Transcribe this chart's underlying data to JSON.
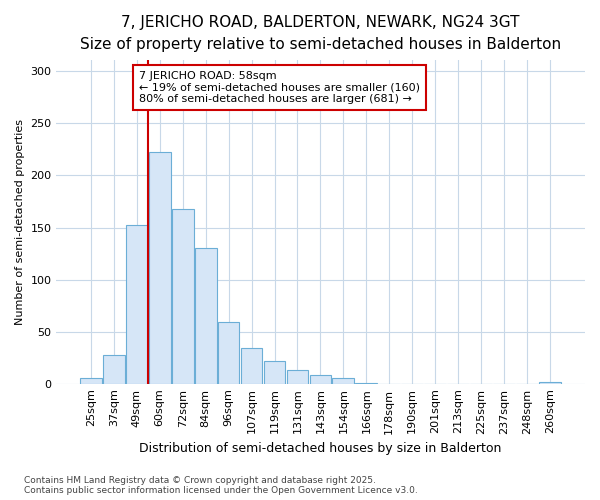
{
  "title1": "7, JERICHO ROAD, BALDERTON, NEWARK, NG24 3GT",
  "title2": "Size of property relative to semi-detached houses in Balderton",
  "xlabel": "Distribution of semi-detached houses by size in Balderton",
  "ylabel": "Number of semi-detached properties",
  "categories": [
    "25sqm",
    "37sqm",
    "49sqm",
    "60sqm",
    "72sqm",
    "84sqm",
    "96sqm",
    "107sqm",
    "119sqm",
    "131sqm",
    "143sqm",
    "154sqm",
    "166sqm",
    "178sqm",
    "190sqm",
    "201sqm",
    "213sqm",
    "225sqm",
    "237sqm",
    "248sqm",
    "260sqm"
  ],
  "bar_heights": [
    6,
    28,
    152,
    222,
    168,
    130,
    60,
    35,
    22,
    14,
    9,
    6,
    1,
    0,
    0,
    0,
    0,
    0,
    0,
    0,
    2
  ],
  "bar_color": "#d6e6f7",
  "bar_edge_color": "#6baed6",
  "vline_pos": 2.5,
  "vline_color": "#cc0000",
  "annotation_text": "7 JERICHO ROAD: 58sqm\n← 19% of semi-detached houses are smaller (160)\n80% of semi-detached houses are larger (681) →",
  "footer": "Contains HM Land Registry data © Crown copyright and database right 2025.\nContains public sector information licensed under the Open Government Licence v3.0.",
  "bg_color": "#ffffff",
  "grid_color": "#c8d8e8",
  "ylim": [
    0,
    310
  ],
  "yticks": [
    0,
    50,
    100,
    150,
    200,
    250,
    300
  ],
  "title1_fontsize": 11,
  "title2_fontsize": 9,
  "ylabel_fontsize": 8,
  "xlabel_fontsize": 9,
  "tick_fontsize": 8,
  "annot_fontsize": 8,
  "footer_fontsize": 6.5
}
